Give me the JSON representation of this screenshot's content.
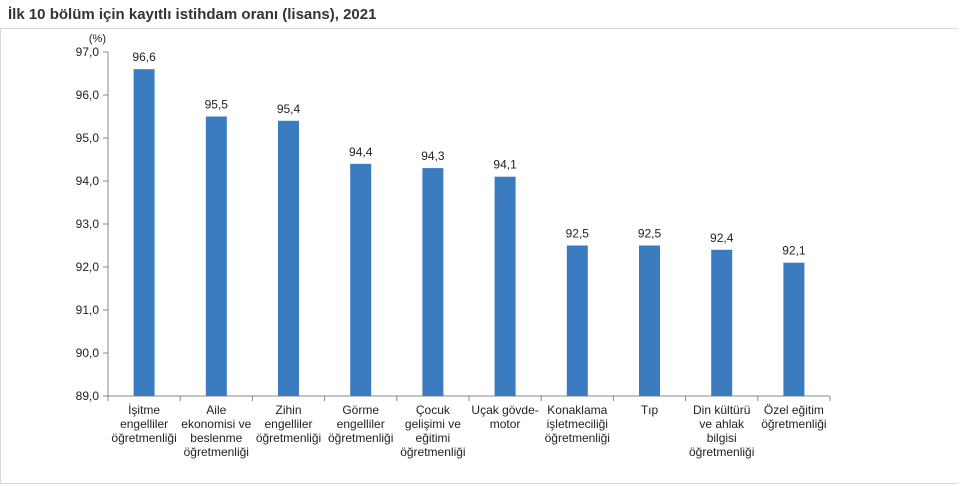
{
  "title": "İlk 10 bölüm için kayıtlı istihdam oranı (lisans), 2021",
  "chart_data": {
    "type": "bar",
    "title": "İlk 10 bölüm için kayıtlı istihdam oranı (lisans), 2021",
    "unit": "(%)",
    "categories": [
      [
        "İşitme",
        "engelliler",
        "öğretmenliği"
      ],
      [
        "Aile",
        "ekonomisi ve",
        "beslenme",
        "öğretmenliği"
      ],
      [
        "Zihin",
        "engelliler",
        "öğretmenliği"
      ],
      [
        "Görme",
        "engelliler",
        "öğretmenliği"
      ],
      [
        "Çocuk",
        "gelişimi ve",
        "eğitimi",
        "öğretmenliği"
      ],
      [
        "Uçak gövde-",
        "motor"
      ],
      [
        "Konaklama",
        "işletmeciliği",
        "öğretmenliği"
      ],
      [
        "Tıp"
      ],
      [
        "Din kültürü",
        "ve ahlak",
        "bilgisi",
        "öğretmenliği"
      ],
      [
        "Özel eğitim",
        "öğretmenliği"
      ]
    ],
    "values": [
      96.6,
      95.5,
      95.4,
      94.4,
      94.3,
      94.1,
      92.5,
      92.5,
      92.4,
      92.1
    ],
    "value_labels": [
      "96,6",
      "95,5",
      "95,4",
      "94,4",
      "94,3",
      "94,1",
      "92,5",
      "92,5",
      "92,4",
      "92,1"
    ],
    "ylim": [
      89.0,
      97.0
    ],
    "yticks": [
      "89,0",
      "90,0",
      "91,0",
      "92,0",
      "93,0",
      "94,0",
      "95,0",
      "96,0",
      "97,0"
    ],
    "grid": false,
    "bar_color": "#3b7bbf"
  }
}
